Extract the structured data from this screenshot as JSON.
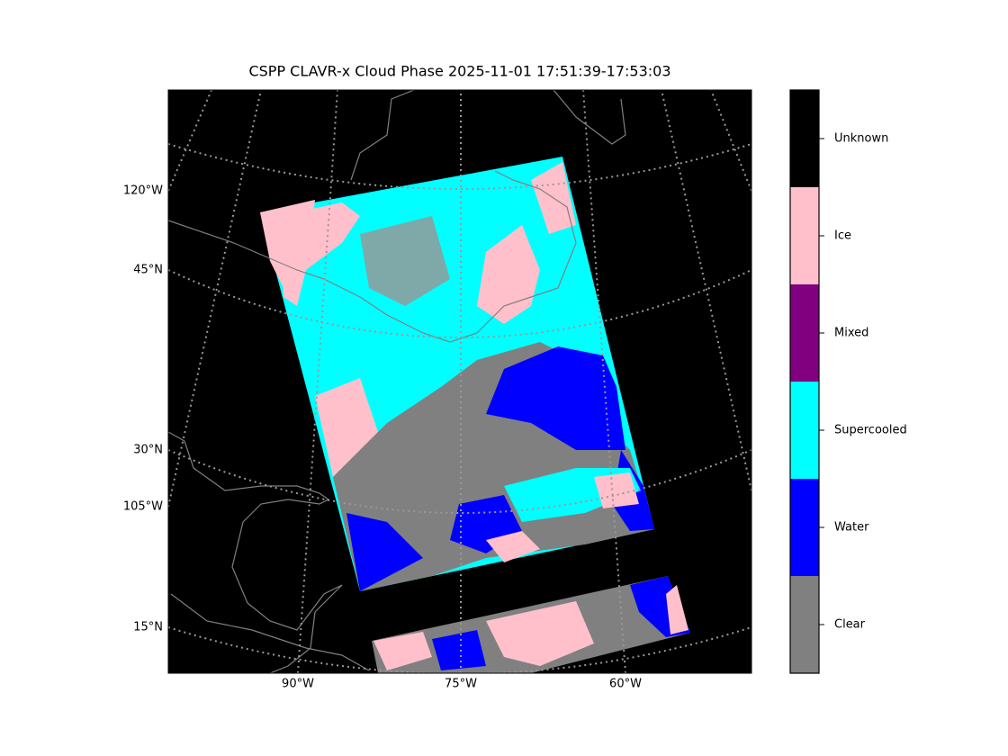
{
  "title": "CSPP CLAVR-x Cloud Phase 2025-11-01 17:51:39-17:53:03",
  "map": {
    "left_labels": [
      "120°W",
      "45°N",
      "30°N",
      "105°W",
      "15°N"
    ],
    "bottom_labels": [
      "90°W",
      "75°W",
      "60°W"
    ]
  },
  "colorbar": {
    "classes": [
      {
        "label": "Unknown",
        "color": "#000000"
      },
      {
        "label": "Ice",
        "color": "#ffc0cb"
      },
      {
        "label": "Mixed",
        "color": "#800080"
      },
      {
        "label": "Supercooled",
        "color": "#00ffff"
      },
      {
        "label": "Water",
        "color": "#0000ff"
      },
      {
        "label": "Clear",
        "color": "#808080"
      }
    ]
  }
}
